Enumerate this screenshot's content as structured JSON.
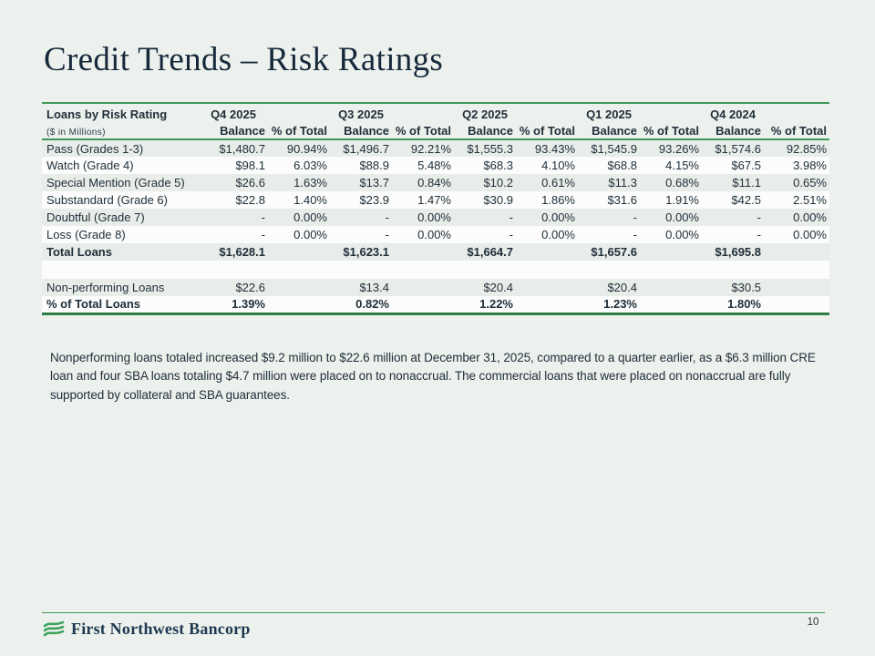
{
  "slide": {
    "title": "Credit Trends – Risk Ratings",
    "page_number": "10",
    "footer": {
      "brand": "First Northwest Bancorp"
    }
  },
  "table": {
    "label_header": "Loans by Risk Rating",
    "label_subheader": "($ in Millions)",
    "periods": [
      "Q4 2025",
      "Q3 2025",
      "Q2 2025",
      "Q1 2025",
      "Q4 2024"
    ],
    "sub_columns": [
      "Balance",
      "% of Total"
    ],
    "rows": [
      {
        "label": "Pass (Grades 1-3)",
        "shaded": true,
        "bold": false,
        "spacer": false,
        "values": [
          "$1,480.7",
          "90.94%",
          "$1,496.7",
          "92.21%",
          "$1,555.3",
          "93.43%",
          "$1,545.9",
          "93.26%",
          "$1,574.6",
          "92.85%"
        ]
      },
      {
        "label": "Watch (Grade 4)",
        "shaded": false,
        "bold": false,
        "spacer": false,
        "values": [
          "$98.1",
          "6.03%",
          "$88.9",
          "5.48%",
          "$68.3",
          "4.10%",
          "$68.8",
          "4.15%",
          "$67.5",
          "3.98%"
        ]
      },
      {
        "label": "Special Mention (Grade 5)",
        "shaded": true,
        "bold": false,
        "spacer": false,
        "values": [
          "$26.6",
          "1.63%",
          "$13.7",
          "0.84%",
          "$10.2",
          "0.61%",
          "$11.3",
          "0.68%",
          "$11.1",
          "0.65%"
        ]
      },
      {
        "label": "Substandard (Grade 6)",
        "shaded": false,
        "bold": false,
        "spacer": false,
        "values": [
          "$22.8",
          "1.40%",
          "$23.9",
          "1.47%",
          "$30.9",
          "1.86%",
          "$31.6",
          "1.91%",
          "$42.5",
          "2.51%"
        ]
      },
      {
        "label": "Doubtful (Grade 7)",
        "shaded": true,
        "bold": false,
        "spacer": false,
        "values": [
          "-",
          "0.00%",
          "-",
          "0.00%",
          "-",
          "0.00%",
          "-",
          "0.00%",
          "-",
          "0.00%"
        ]
      },
      {
        "label": "Loss (Grade 8)",
        "shaded": false,
        "bold": false,
        "spacer": false,
        "values": [
          "-",
          "0.00%",
          "-",
          "0.00%",
          "-",
          "0.00%",
          "-",
          "0.00%",
          "-",
          "0.00%"
        ]
      },
      {
        "label": "Total Loans",
        "shaded": true,
        "bold": true,
        "spacer": false,
        "values": [
          "$1,628.1",
          "",
          "$1,623.1",
          "",
          "$1,664.7",
          "",
          "$1,657.6",
          "",
          "$1,695.8",
          ""
        ]
      },
      {
        "label": "",
        "shaded": false,
        "bold": false,
        "spacer": true,
        "values": [
          "",
          "",
          "",
          "",
          "",
          "",
          "",
          "",
          "",
          ""
        ]
      },
      {
        "label": "Non-performing Loans",
        "shaded": true,
        "bold": false,
        "spacer": false,
        "values": [
          "$22.6",
          "",
          "$13.4",
          "",
          "$20.4",
          "",
          "$20.4",
          "",
          "$30.5",
          ""
        ]
      },
      {
        "label": "% of Total Loans",
        "shaded": false,
        "bold": true,
        "spacer": false,
        "values": [
          "1.39%",
          "",
          "0.82%",
          "",
          "1.22%",
          "",
          "1.23%",
          "",
          "1.80%",
          ""
        ]
      }
    ]
  },
  "note": "Nonperforming loans totaled increased $9.2 million to $22.6 million at December 31, 2025, compared to a quarter earlier, as a $6.3 million CRE loan and four SBA loans totaling $4.7 million were placed on to nonaccrual. The commercial loans that were placed on nonaccrual are fully supported by collateral and SBA guarantees.",
  "colors": {
    "background": "#ecf1ed",
    "accent_green": "#41975a",
    "accent_green_dark": "#2e7d46",
    "title_navy": "#16293b",
    "table_text": "#212f3a",
    "shaded_row": "#e8ede9",
    "logo_green": "#3aa258"
  }
}
